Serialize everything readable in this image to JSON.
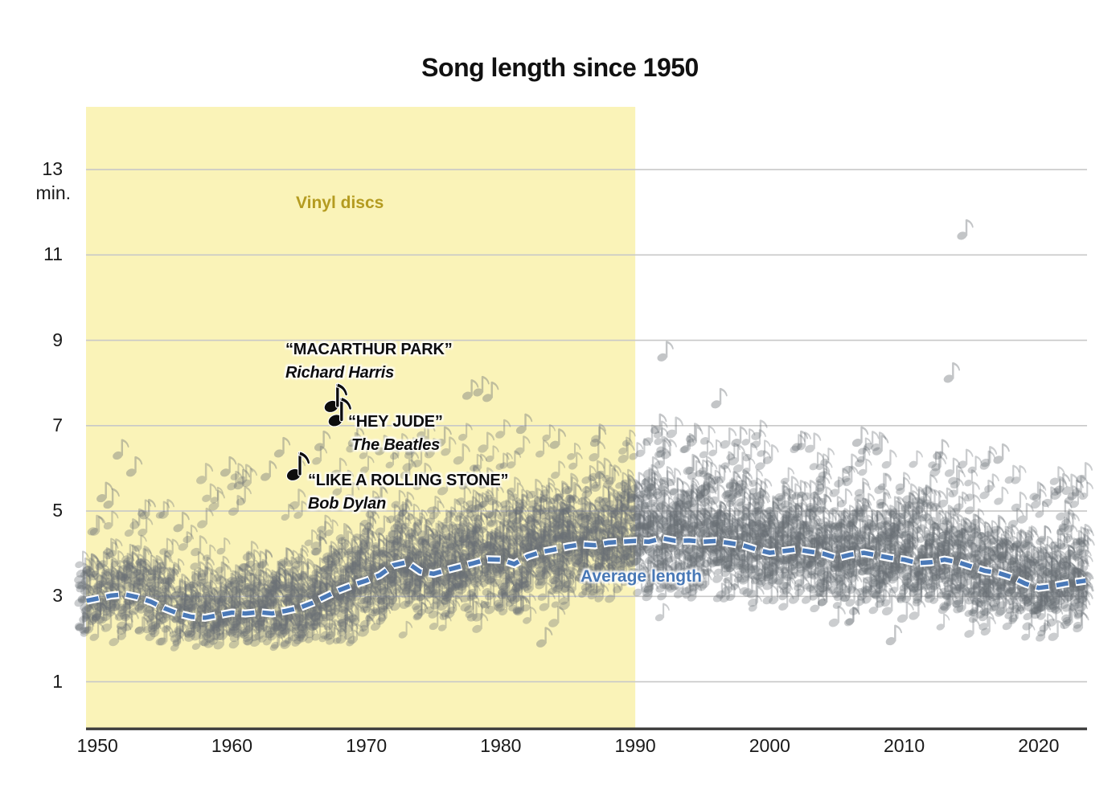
{
  "title": "Song length since 1950",
  "chart_data": {
    "type": "scatter",
    "title": "Song length since 1950",
    "marker": "eighth-note glyph, translucent gray, one column per year",
    "ylabel_unit": "min.",
    "y_ticks": [
      13,
      11,
      9,
      7,
      5,
      3,
      1
    ],
    "x_ticks": [
      "1950",
      "1960",
      "1970",
      "1980",
      "1990",
      "2000",
      "2010",
      "2020"
    ],
    "x_range": [
      1949.15,
      2023.6
    ],
    "y_axis_minutes_range": [
      1,
      13
    ],
    "grid": "horizontal light-gray lines at odd minutes 1-13",
    "vinyl_region": {
      "label": "Vinyl discs",
      "from_year": 1949.15,
      "to_year": 1990
    },
    "average_line": {
      "label": "Average length",
      "style": "dashed blue with white casing",
      "series": [
        [
          1949.2,
          2.9
        ],
        [
          1950,
          2.95
        ],
        [
          1951,
          3.02
        ],
        [
          1952,
          3.05
        ],
        [
          1953,
          2.98
        ],
        [
          1954,
          2.87
        ],
        [
          1955,
          2.72
        ],
        [
          1956,
          2.6
        ],
        [
          1957,
          2.52
        ],
        [
          1958,
          2.5
        ],
        [
          1959,
          2.56
        ],
        [
          1960,
          2.62
        ],
        [
          1961,
          2.6
        ],
        [
          1962,
          2.63
        ],
        [
          1963,
          2.6
        ],
        [
          1964,
          2.66
        ],
        [
          1965,
          2.73
        ],
        [
          1966,
          2.85
        ],
        [
          1967,
          3.0
        ],
        [
          1968,
          3.15
        ],
        [
          1969,
          3.27
        ],
        [
          1970,
          3.37
        ],
        [
          1971,
          3.5
        ],
        [
          1972,
          3.73
        ],
        [
          1973,
          3.8
        ],
        [
          1974,
          3.58
        ],
        [
          1975,
          3.53
        ],
        [
          1976,
          3.62
        ],
        [
          1977,
          3.7
        ],
        [
          1978,
          3.78
        ],
        [
          1979,
          3.87
        ],
        [
          1980,
          3.86
        ],
        [
          1981,
          3.76
        ],
        [
          1982,
          3.94
        ],
        [
          1983,
          4.04
        ],
        [
          1984,
          4.1
        ],
        [
          1985,
          4.17
        ],
        [
          1986,
          4.22
        ],
        [
          1987,
          4.2
        ],
        [
          1988,
          4.26
        ],
        [
          1989,
          4.28
        ],
        [
          1990,
          4.3
        ],
        [
          1991,
          4.28
        ],
        [
          1992,
          4.36
        ],
        [
          1993,
          4.3
        ],
        [
          1994,
          4.31
        ],
        [
          1995,
          4.28
        ],
        [
          1996,
          4.3
        ],
        [
          1997,
          4.25
        ],
        [
          1998,
          4.2
        ],
        [
          1999,
          4.1
        ],
        [
          2000,
          4.02
        ],
        [
          2001,
          4.06
        ],
        [
          2002,
          4.1
        ],
        [
          2003,
          4.05
        ],
        [
          2004,
          4.0
        ],
        [
          2005,
          3.9
        ],
        [
          2006,
          3.98
        ],
        [
          2007,
          4.02
        ],
        [
          2008,
          3.96
        ],
        [
          2009,
          3.9
        ],
        [
          2010,
          3.86
        ],
        [
          2011,
          3.78
        ],
        [
          2012,
          3.8
        ],
        [
          2013,
          3.86
        ],
        [
          2014,
          3.8
        ],
        [
          2015,
          3.7
        ],
        [
          2016,
          3.6
        ],
        [
          2017,
          3.55
        ],
        [
          2018,
          3.45
        ],
        [
          2019,
          3.3
        ],
        [
          2020,
          3.2
        ],
        [
          2021,
          3.24
        ],
        [
          2022,
          3.3
        ],
        [
          2023.5,
          3.37
        ]
      ]
    },
    "song_annotations": [
      {
        "title": "“MACARTHUR PARK”",
        "artist": "Richard Harris",
        "year": 1967.4,
        "minutes": 7.45
      },
      {
        "title": "“HEY JUDE”",
        "artist": "The Beatles",
        "year": 1967.7,
        "minutes": 7.12
      },
      {
        "title": "“LIKE A ROLLING STONE”",
        "artist": "Bob Dylan",
        "year": 1964.6,
        "minutes": 5.85
      }
    ],
    "outliers": [
      [
        1950.3,
        5.3
      ],
      [
        1950.8,
        5.15
      ],
      [
        1951.5,
        6.3
      ],
      [
        1952.5,
        5.9
      ],
      [
        1953.5,
        4.9
      ],
      [
        1956,
        4.6
      ],
      [
        1959.5,
        5.9
      ],
      [
        1960.5,
        5.6
      ],
      [
        1962.5,
        5.8
      ],
      [
        1963.5,
        6.35
      ],
      [
        1966.5,
        6.5
      ],
      [
        1969,
        6.6
      ],
      [
        1971,
        6.4
      ],
      [
        1975.5,
        6.6
      ],
      [
        1977.5,
        7.7
      ],
      [
        1978.3,
        7.78
      ],
      [
        1979,
        7.65
      ],
      [
        1981.5,
        6.9
      ],
      [
        1984,
        6.55
      ],
      [
        1987,
        6.6
      ],
      [
        1991.5,
        6.9
      ],
      [
        1992,
        8.6
      ],
      [
        1996,
        7.5
      ],
      [
        1997.5,
        6.6
      ],
      [
        2002,
        6.5
      ],
      [
        2006.5,
        6.6
      ],
      [
        2008,
        6.4
      ],
      [
        2012.5,
        6.3
      ],
      [
        2013.3,
        8.1
      ],
      [
        2014.3,
        11.45
      ],
      [
        2017,
        6.2
      ],
      [
        2021.5,
        5.5
      ],
      [
        2022.5,
        5.35
      ],
      [
        1983,
        1.9
      ],
      [
        2009,
        1.95
      ]
    ],
    "scatter_model": {
      "note": "dense per-year columns of songs; distribution summarized per era (count per year, spread sd, min and max minutes)",
      "eras": [
        {
          "from": 1949,
          "to": 1957,
          "count": 34,
          "sd": 0.55,
          "min": 1.8,
          "max": 5.0
        },
        {
          "from": 1958,
          "to": 1964,
          "count": 44,
          "sd": 0.6,
          "min": 1.8,
          "max": 5.9
        },
        {
          "from": 1965,
          "to": 1972,
          "count": 50,
          "sd": 0.7,
          "min": 1.8,
          "max": 6.5
        },
        {
          "from": 1973,
          "to": 1989,
          "count": 56,
          "sd": 0.78,
          "min": 1.8,
          "max": 6.8
        },
        {
          "from": 1990,
          "to": 1999,
          "count": 58,
          "sd": 0.8,
          "min": 1.85,
          "max": 6.8
        },
        {
          "from": 2000,
          "to": 2009,
          "count": 56,
          "sd": 0.75,
          "min": 1.9,
          "max": 6.6
        },
        {
          "from": 2010,
          "to": 2016,
          "count": 52,
          "sd": 0.7,
          "min": 2.0,
          "max": 6.2
        },
        {
          "from": 2017,
          "to": 2023,
          "count": 48,
          "sd": 0.62,
          "min": 2.0,
          "max": 5.8
        }
      ]
    },
    "colors": {
      "vinyl_band": "#faf3b8",
      "vinyl_label": "#b49b20",
      "average_line": "#4a79b8",
      "note_gray": "#6a7076",
      "annotation_note": "#0d0d0d",
      "gridline": "#c8c8c8",
      "axis_line": "#3d3d3d",
      "text": "#1a1a1a"
    }
  }
}
